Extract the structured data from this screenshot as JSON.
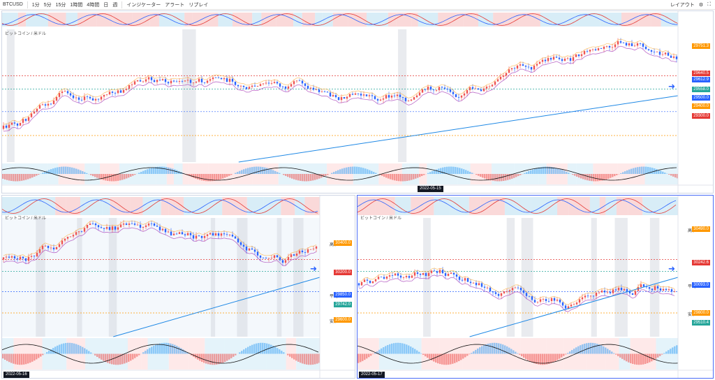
{
  "toolbar": {
    "symbol": "BTCUSD",
    "timeframes": [
      "1分",
      "5分",
      "15分",
      "1時間",
      "4時間",
      "日",
      "週"
    ],
    "indicators_label": "インジケーター",
    "alert_label": "アラート",
    "replay_label": "リプレイ",
    "layout_label": "レイアウト"
  },
  "top_chart": {
    "title": "ビットコイン / 米ドル",
    "date_badge": "2022-05-15",
    "price_labels": [
      "29751.3",
      "29640.5",
      "29612.9",
      "29558.0",
      "29500.0",
      "29400.0",
      "29300.0"
    ],
    "tag_colors": {
      "red": "#e53935",
      "blue": "#2962ff",
      "orange": "#ff9800",
      "teal": "#26a69a"
    }
  },
  "left_chart": {
    "title": "ビットコイン / 米ドル",
    "date_badge": "2022-05-16",
    "price_labels": [
      "30400.0",
      "30200.0",
      "29850.0",
      "29742.0",
      "29600.0"
    ],
    "label_high": "高値",
    "label_avg": "平均",
    "label_low": "安値"
  },
  "right_chart": {
    "title": "ビットコイン / 米ドル",
    "date_badge": "2022-05-17",
    "price_labels": [
      "30490.0",
      "30242.6",
      "30093.0",
      "29800.0",
      "29510.4"
    ],
    "label_high": "高値",
    "label_avg": "平均",
    "label_low": "安値"
  }
}
